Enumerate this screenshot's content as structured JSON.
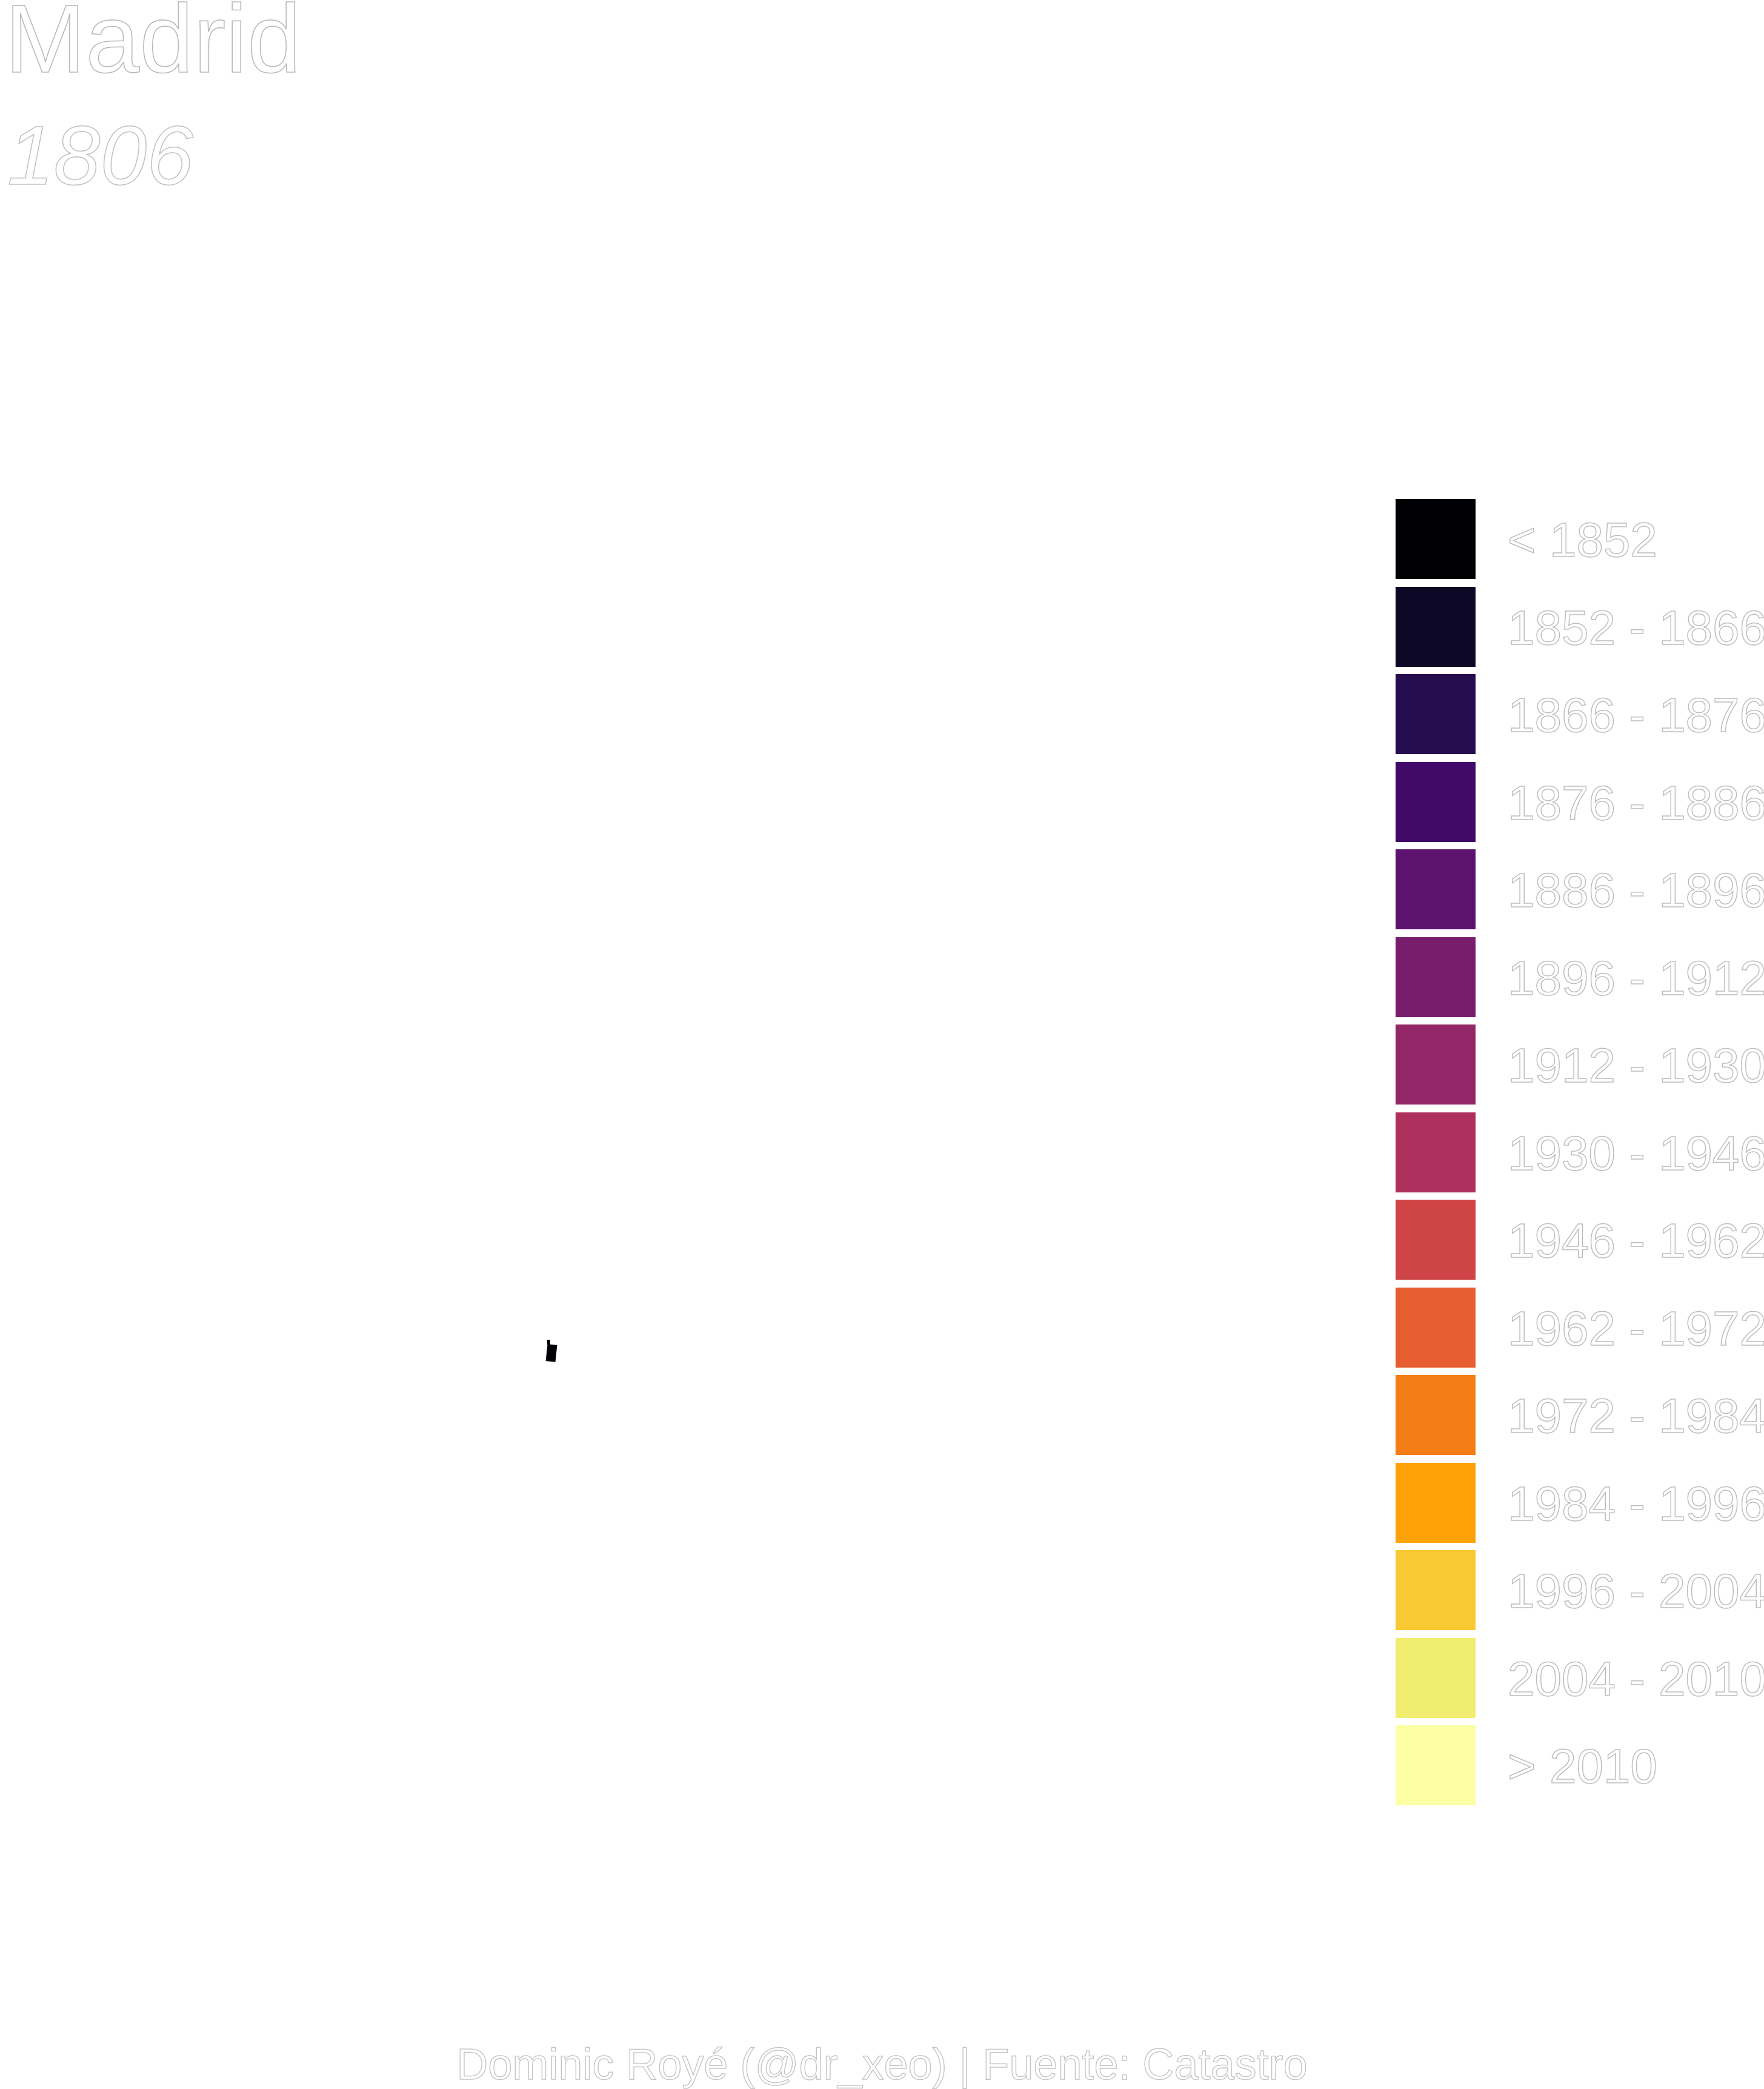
{
  "title": "Madrid",
  "year": "1806",
  "legend": {
    "items": [
      {
        "label": "< 1852",
        "color": "#000004"
      },
      {
        "label": "1852 - 1866",
        "color": "#0c0826"
      },
      {
        "label": "1866 - 1876",
        "color": "#240c4f"
      },
      {
        "label": "1876 - 1886",
        "color": "#420a68"
      },
      {
        "label": "1886 - 1896",
        "color": "#5d126e"
      },
      {
        "label": "1896 - 1912",
        "color": "#781c6d"
      },
      {
        "label": "1912 - 1930",
        "color": "#932667"
      },
      {
        "label": "1930 - 1946",
        "color": "#ae305c"
      },
      {
        "label": "1946 - 1962",
        "color": "#cf4446"
      },
      {
        "label": "1962 - 1972",
        "color": "#e65d2f"
      },
      {
        "label": "1972 - 1984",
        "color": "#f57d15"
      },
      {
        "label": "1984 - 1996",
        "color": "#fca108"
      },
      {
        "label": "1996 - 2004",
        "color": "#f8c932"
      },
      {
        "label": "2004 - 2010",
        "color": "#f1ed71"
      },
      {
        "label": "> 2010",
        "color": "#fcffa4"
      }
    ]
  },
  "map": {
    "building_color": "#000004"
  },
  "caption": "Dominic Royé (@dr_xeo) | Fuente: Catastro"
}
